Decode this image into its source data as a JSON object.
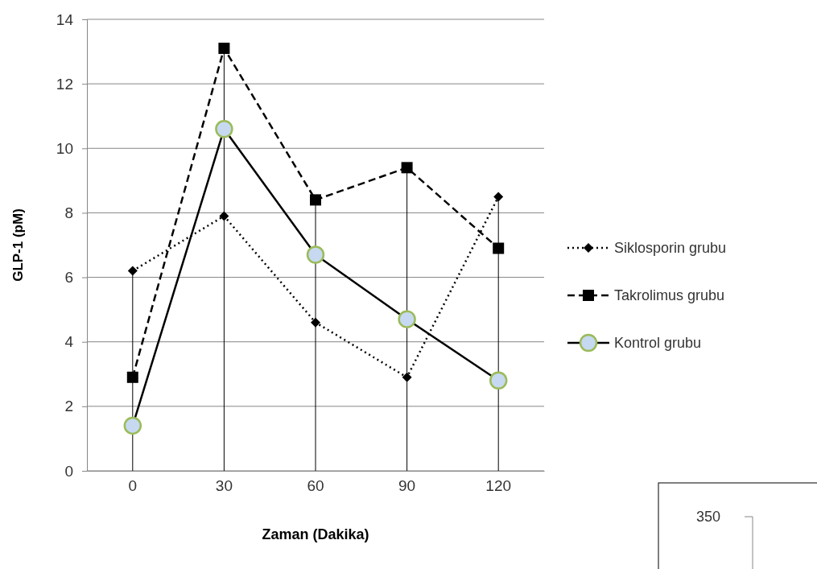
{
  "chart_data": [
    {
      "type": "line",
      "xlabel": "Zaman (Dakika)",
      "ylabel": "GLP-1 (pM)",
      "categories": [
        "0",
        "30",
        "60",
        "90",
        "120"
      ],
      "ylim": [
        0,
        14
      ],
      "yticks": [
        0,
        2,
        4,
        6,
        8,
        10,
        12,
        14
      ],
      "grid": "y",
      "legend": "right",
      "series": [
        {
          "name": "Siklosporin grubu",
          "color": "#000000",
          "marker": "diamond",
          "line_style": "dotted",
          "values": [
            6.2,
            7.9,
            4.6,
            2.9,
            8.5
          ]
        },
        {
          "name": "Takrolimus grubu",
          "color": "#000000",
          "marker": "square",
          "line_style": "dashed",
          "values": [
            2.9,
            13.1,
            8.4,
            9.4,
            6.9
          ],
          "errors": [
            [
              0,
              6.2
            ],
            [
              0,
              13.1
            ],
            [
              0,
              8.4
            ],
            [
              0,
              9.4
            ],
            [
              0,
              8.5
            ]
          ]
        },
        {
          "name": "Kontrol grubu",
          "color": "#000000",
          "marker": "circle",
          "line_style": "solid",
          "values": [
            1.4,
            10.6,
            6.7,
            4.7,
            2.8
          ]
        }
      ]
    },
    {
      "type": "other",
      "annotations": [
        "350"
      ]
    }
  ]
}
